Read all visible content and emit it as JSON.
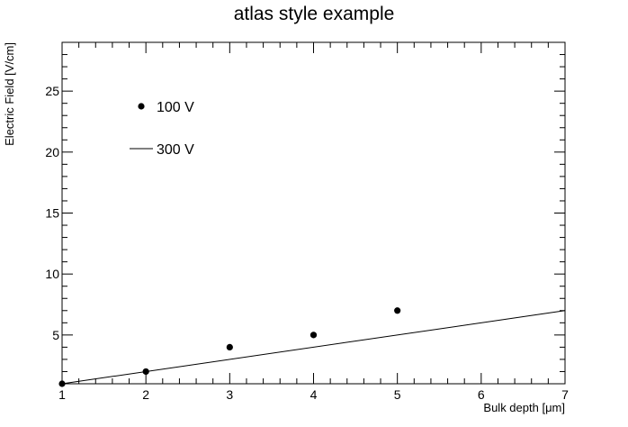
{
  "chart_data": {
    "type": "scatter",
    "title": "atlas style example",
    "xlabel": "Bulk depth [μm]",
    "ylabel": "Electric Field [V/cm]",
    "xlim": [
      1,
      7
    ],
    "ylim": [
      1,
      29
    ],
    "x_ticks": [
      1,
      2,
      3,
      4,
      5,
      6,
      7
    ],
    "y_ticks": [
      5,
      10,
      15,
      20,
      25
    ],
    "grid": false,
    "legend_position": "top-left",
    "series": [
      {
        "name": "100 V",
        "style": "markers",
        "color": "#000000",
        "points": [
          {
            "x": 1,
            "y": 1
          },
          {
            "x": 2,
            "y": 2
          },
          {
            "x": 3,
            "y": 4
          },
          {
            "x": 4,
            "y": 5
          },
          {
            "x": 5,
            "y": 7
          }
        ]
      },
      {
        "name": "300 V",
        "style": "line",
        "color": "#000000",
        "points": [
          {
            "x": 1,
            "y": 1
          },
          {
            "x": 7,
            "y": 7
          }
        ]
      }
    ]
  }
}
